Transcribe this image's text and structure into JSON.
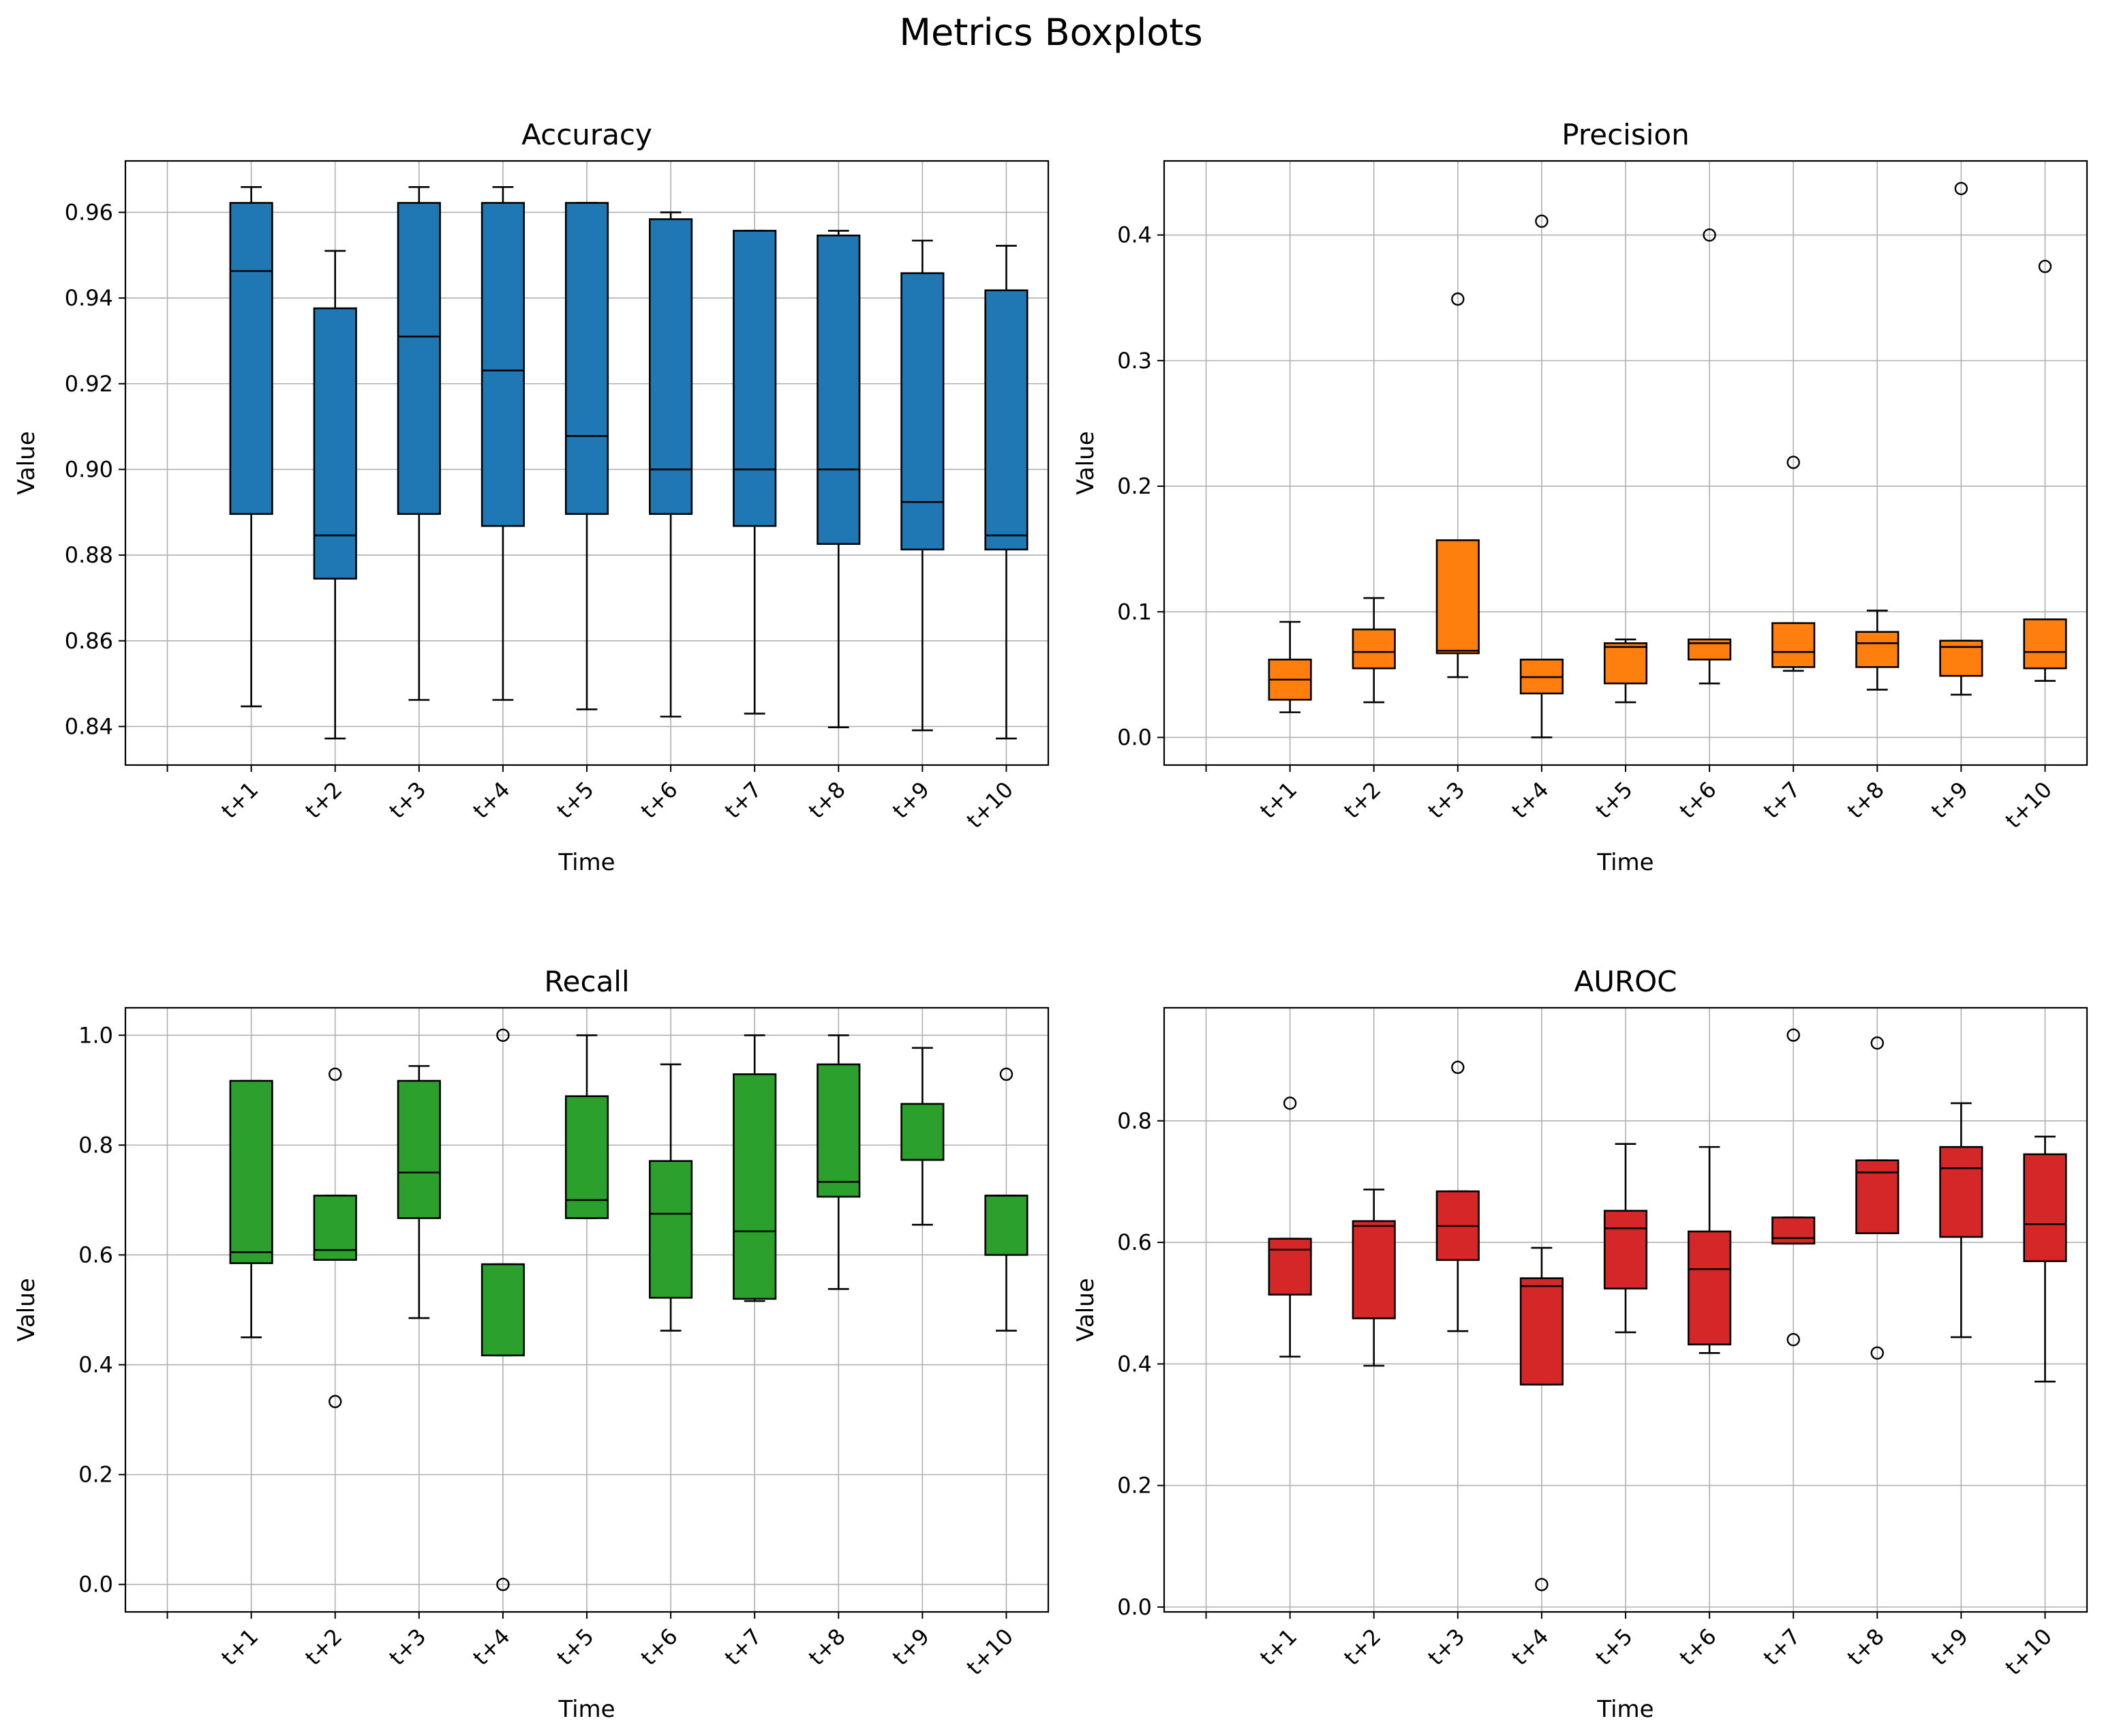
{
  "figure": {
    "title": "Metrics Boxplots"
  },
  "chart_data": [
    {
      "type": "boxplot",
      "title": "Accuracy",
      "xlabel": "Time",
      "ylabel": "Value",
      "color": "#1f77b4",
      "categories": [
        "t+1",
        "t+2",
        "t+3",
        "t+4",
        "t+5",
        "t+6",
        "t+7",
        "t+8",
        "t+9",
        "t+10"
      ],
      "ylim": [
        0.831,
        0.972
      ],
      "yticks": [
        0.84,
        0.86,
        0.88,
        0.9,
        0.92,
        0.94,
        0.96
      ],
      "ytick_labels": [
        "0.84",
        "0.86",
        "0.88",
        "0.90",
        "0.92",
        "0.94",
        "0.96"
      ],
      "grid": true,
      "boxes": [
        {
          "whislo": 0.8447,
          "q1": 0.8896,
          "med": 0.9463,
          "q3": 0.9622,
          "whishi": 0.9659,
          "fliers": []
        },
        {
          "whislo": 0.8372,
          "q1": 0.8745,
          "med": 0.8846,
          "q3": 0.9376,
          "whishi": 0.951,
          "fliers": []
        },
        {
          "whislo": 0.8462,
          "q1": 0.8896,
          "med": 0.931,
          "q3": 0.9622,
          "whishi": 0.9659,
          "fliers": []
        },
        {
          "whislo": 0.8462,
          "q1": 0.8868,
          "med": 0.9231,
          "q3": 0.9622,
          "whishi": 0.9659,
          "fliers": []
        },
        {
          "whislo": 0.844,
          "q1": 0.8896,
          "med": 0.9078,
          "q3": 0.9622,
          "whishi": 0.9622,
          "fliers": []
        },
        {
          "whislo": 0.8423,
          "q1": 0.8896,
          "med": 0.9,
          "q3": 0.9584,
          "whishi": 0.96,
          "fliers": []
        },
        {
          "whislo": 0.843,
          "q1": 0.8868,
          "med": 0.9,
          "q3": 0.9557,
          "whishi": 0.9557,
          "fliers": []
        },
        {
          "whislo": 0.8398,
          "q1": 0.8826,
          "med": 0.9,
          "q3": 0.9546,
          "whishi": 0.9557,
          "fliers": []
        },
        {
          "whislo": 0.8391,
          "q1": 0.8813,
          "med": 0.8924,
          "q3": 0.9458,
          "whishi": 0.9534,
          "fliers": []
        },
        {
          "whislo": 0.8372,
          "q1": 0.8813,
          "med": 0.8846,
          "q3": 0.9418,
          "whishi": 0.9522,
          "fliers": []
        }
      ]
    },
    {
      "type": "boxplot",
      "title": "Precision",
      "xlabel": "Time",
      "ylabel": "Value",
      "color": "#ff7f0e",
      "categories": [
        "t+1",
        "t+2",
        "t+3",
        "t+4",
        "t+5",
        "t+6",
        "t+7",
        "t+8",
        "t+9",
        "t+10"
      ],
      "ylim": [
        -0.022,
        0.459
      ],
      "yticks": [
        0.0,
        0.1,
        0.2,
        0.3,
        0.4
      ],
      "ytick_labels": [
        "0.0",
        "0.1",
        "0.2",
        "0.3",
        "0.4"
      ],
      "grid": true,
      "boxes": [
        {
          "whislo": 0.02,
          "q1": 0.03,
          "med": 0.046,
          "q3": 0.062,
          "whishi": 0.092,
          "fliers": []
        },
        {
          "whislo": 0.028,
          "q1": 0.055,
          "med": 0.068,
          "q3": 0.086,
          "whishi": 0.111,
          "fliers": []
        },
        {
          "whislo": 0.048,
          "q1": 0.067,
          "med": 0.069,
          "q3": 0.157,
          "whishi": 0.157,
          "fliers": [
            0.349
          ]
        },
        {
          "whislo": 0.0,
          "q1": 0.035,
          "med": 0.048,
          "q3": 0.062,
          "whishi": 0.062,
          "fliers": [
            0.411
          ]
        },
        {
          "whislo": 0.028,
          "q1": 0.043,
          "med": 0.072,
          "q3": 0.075,
          "whishi": 0.078,
          "fliers": []
        },
        {
          "whislo": 0.043,
          "q1": 0.062,
          "med": 0.075,
          "q3": 0.078,
          "whishi": 0.078,
          "fliers": [
            0.4
          ]
        },
        {
          "whislo": 0.053,
          "q1": 0.056,
          "med": 0.068,
          "q3": 0.091,
          "whishi": 0.091,
          "fliers": [
            0.219
          ]
        },
        {
          "whislo": 0.038,
          "q1": 0.056,
          "med": 0.075,
          "q3": 0.084,
          "whishi": 0.101,
          "fliers": []
        },
        {
          "whislo": 0.034,
          "q1": 0.049,
          "med": 0.072,
          "q3": 0.077,
          "whishi": 0.077,
          "fliers": [
            0.437
          ]
        },
        {
          "whislo": 0.045,
          "q1": 0.055,
          "med": 0.068,
          "q3": 0.094,
          "whishi": 0.094,
          "fliers": [
            0.375
          ]
        }
      ]
    },
    {
      "type": "boxplot",
      "title": "Recall",
      "xlabel": "Time",
      "ylabel": "Value",
      "color": "#2ca02c",
      "categories": [
        "t+1",
        "t+2",
        "t+3",
        "t+4",
        "t+5",
        "t+6",
        "t+7",
        "t+8",
        "t+9",
        "t+10"
      ],
      "ylim": [
        -0.05,
        1.05
      ],
      "yticks": [
        0.0,
        0.2,
        0.4,
        0.6,
        0.8,
        1.0
      ],
      "ytick_labels": [
        "0.0",
        "0.2",
        "0.4",
        "0.6",
        "0.8",
        "1.0"
      ],
      "grid": true,
      "boxes": [
        {
          "whislo": 0.45,
          "q1": 0.585,
          "med": 0.605,
          "q3": 0.917,
          "whishi": 0.917,
          "fliers": []
        },
        {
          "whislo": 0.591,
          "q1": 0.591,
          "med": 0.609,
          "q3": 0.708,
          "whishi": 0.708,
          "fliers": [
            0.333,
            0.929
          ]
        },
        {
          "whislo": 0.485,
          "q1": 0.667,
          "med": 0.75,
          "q3": 0.917,
          "whishi": 0.944,
          "fliers": []
        },
        {
          "whislo": 0.417,
          "q1": 0.417,
          "med": 0.583,
          "q3": 0.583,
          "whishi": 0.583,
          "fliers": [
            0.0,
            1.0
          ]
        },
        {
          "whislo": 0.667,
          "q1": 0.667,
          "med": 0.7,
          "q3": 0.889,
          "whishi": 1.0,
          "fliers": []
        },
        {
          "whislo": 0.462,
          "q1": 0.522,
          "med": 0.675,
          "q3": 0.771,
          "whishi": 0.947,
          "fliers": []
        },
        {
          "whislo": 0.516,
          "q1": 0.52,
          "med": 0.643,
          "q3": 0.929,
          "whishi": 1.0,
          "fliers": []
        },
        {
          "whislo": 0.538,
          "q1": 0.706,
          "med": 0.733,
          "q3": 0.947,
          "whishi": 1.0,
          "fliers": []
        },
        {
          "whislo": 0.655,
          "q1": 0.773,
          "med": 0.773,
          "q3": 0.875,
          "whishi": 0.977,
          "fliers": []
        },
        {
          "whislo": 0.462,
          "q1": 0.6,
          "med": 0.708,
          "q3": 0.708,
          "whishi": 0.708,
          "fliers": [
            0.929
          ]
        }
      ]
    },
    {
      "type": "boxplot",
      "title": "AUROC",
      "xlabel": "Time",
      "ylabel": "Value",
      "color": "#d62728",
      "categories": [
        "t+1",
        "t+2",
        "t+3",
        "t+4",
        "t+5",
        "t+6",
        "t+7",
        "t+8",
        "t+9",
        "t+10"
      ],
      "ylim": [
        -0.008,
        0.986
      ],
      "yticks": [
        0.0,
        0.2,
        0.4,
        0.6,
        0.8
      ],
      "ytick_labels": [
        "0.0",
        "0.2",
        "0.4",
        "0.6",
        "0.8"
      ],
      "grid": true,
      "boxes": [
        {
          "whislo": 0.412,
          "q1": 0.514,
          "med": 0.588,
          "q3": 0.606,
          "whishi": 0.606,
          "fliers": [
            0.829
          ]
        },
        {
          "whislo": 0.397,
          "q1": 0.475,
          "med": 0.627,
          "q3": 0.635,
          "whishi": 0.687,
          "fliers": []
        },
        {
          "whislo": 0.454,
          "q1": 0.571,
          "med": 0.627,
          "q3": 0.684,
          "whishi": 0.684,
          "fliers": [
            0.888
          ]
        },
        {
          "whislo": 0.366,
          "q1": 0.366,
          "med": 0.528,
          "q3": 0.541,
          "whishi": 0.591,
          "fliers": [
            0.037
          ]
        },
        {
          "whislo": 0.452,
          "q1": 0.524,
          "med": 0.623,
          "q3": 0.652,
          "whishi": 0.762,
          "fliers": []
        },
        {
          "whislo": 0.418,
          "q1": 0.432,
          "med": 0.556,
          "q3": 0.618,
          "whishi": 0.757,
          "fliers": []
        },
        {
          "whislo": 0.598,
          "q1": 0.598,
          "med": 0.607,
          "q3": 0.641,
          "whishi": 0.641,
          "fliers": [
            0.44,
            0.941
          ]
        },
        {
          "whislo": 0.615,
          "q1": 0.615,
          "med": 0.715,
          "q3": 0.735,
          "whishi": 0.735,
          "fliers": [
            0.418,
            0.928
          ]
        },
        {
          "whislo": 0.444,
          "q1": 0.609,
          "med": 0.722,
          "q3": 0.757,
          "whishi": 0.829,
          "fliers": []
        },
        {
          "whislo": 0.371,
          "q1": 0.569,
          "med": 0.63,
          "q3": 0.745,
          "whishi": 0.774,
          "fliers": []
        }
      ]
    }
  ]
}
